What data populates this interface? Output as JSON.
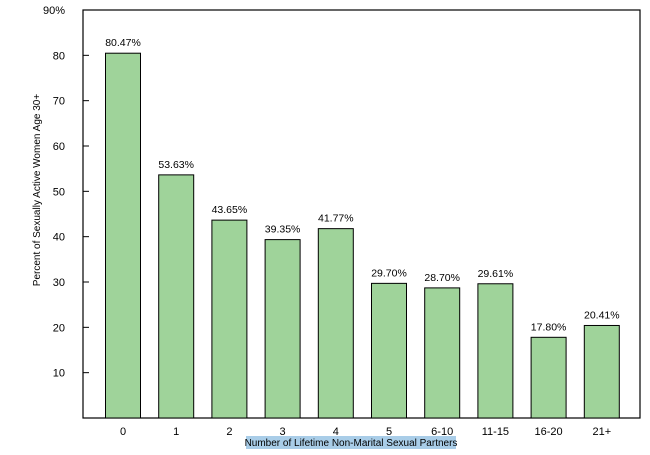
{
  "chart_data": {
    "type": "bar",
    "title": "",
    "xlabel": "Number of Lifetime Non-Marital Sexual Partners",
    "ylabel": "Percent of Sexually Active Women Age 30+",
    "ylim": [
      0,
      90
    ],
    "yticks": [
      10,
      20,
      30,
      40,
      50,
      60,
      70,
      80,
      90
    ],
    "ytick_labels": [
      "10",
      "20",
      "30",
      "40",
      "50",
      "60",
      "70",
      "80",
      "90%"
    ],
    "categories": [
      "0",
      "1",
      "2",
      "3",
      "4",
      "5",
      "6-10",
      "11-15",
      "16-20",
      "21+"
    ],
    "values": [
      80.47,
      53.63,
      43.65,
      39.35,
      41.77,
      29.7,
      28.7,
      29.61,
      17.8,
      20.41
    ],
    "data_labels": [
      "80.47%",
      "53.63%",
      "43.65%",
      "39.35%",
      "41.77%",
      "29.70%",
      "28.70%",
      "29.61%",
      "17.80%",
      "20.41%"
    ],
    "grid": false,
    "colors": {
      "bar_fill": "#9fd39a",
      "bar_stroke": "#000000",
      "axis": "#000000",
      "xlabel_highlight": "#a9cde8"
    }
  }
}
